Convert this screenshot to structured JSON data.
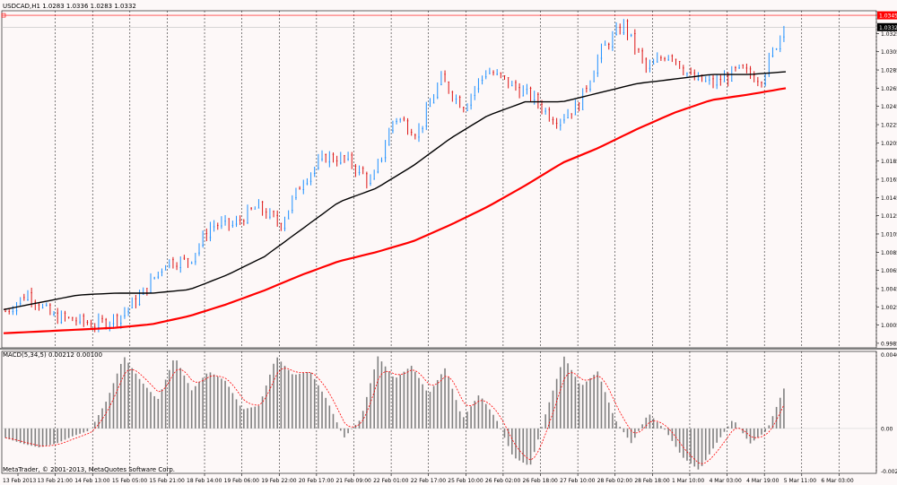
{
  "chart_header": {
    "symbol": "USDCAD,H1",
    "ohlc": "1.0283 1.0336 1.0283 1.0332"
  },
  "indicator_header": {
    "name": "MACD(5,34,5)",
    "values": "0.00212 0.00100"
  },
  "copyright": "MetaTrader, © 2001-2013, MetaQuotes Software Corp.",
  "price_axis": {
    "ticks": [
      "1.0325",
      "1.0305",
      "1.0285",
      "1.0265",
      "1.0245",
      "1.0225",
      "1.0205",
      "1.0185",
      "1.0165",
      "1.0145",
      "1.0125",
      "1.0105",
      "1.0085",
      "1.0065",
      "1.0045",
      "1.0025",
      "1.0005",
      "0.9985"
    ],
    "current_price": "1.0332",
    "line_price": "1.0345",
    "line_color": "#ff0000",
    "current_color": "#000000"
  },
  "macd_axis": {
    "ticks": [
      "0.00405",
      "0.00",
      "-0.00236"
    ]
  },
  "time_axis": {
    "labels": [
      "13 Feb 2013",
      "13 Feb 21:00",
      "14 Feb 13:00",
      "15 Feb 05:00",
      "15 Feb 21:00",
      "18 Feb 14:00",
      "19 Feb 06:00",
      "19 Feb 22:00",
      "20 Feb 17:00",
      "21 Feb 09:00",
      "22 Feb 01:00",
      "22 Feb 17:00",
      "25 Feb 10:00",
      "26 Feb 02:00",
      "26 Feb 18:00",
      "27 Feb 10:00",
      "28 Feb 02:00",
      "28 Feb 18:00",
      "1 Mar 10:00",
      "4 Mar 03:00",
      "4 Mar 19:00",
      "5 Mar 11:00",
      "6 Mar 03:00"
    ]
  },
  "colors": {
    "bull": "#1e90ff",
    "bear": "#dc1414",
    "ma_slow": "#ff0000",
    "ma_fast": "#000000",
    "hist": "#808080",
    "signal": "#ff0000",
    "background": "#fdf8f8"
  },
  "chart_data": [
    {
      "type": "candlestick",
      "title": "USDCAD,H1",
      "ylim": [
        0.998,
        1.035
      ],
      "price_waypoints": [
        1.002,
        1.004,
        1.0015,
        1.001,
        1.0005,
        1.0015,
        1.004,
        1.0075,
        1.0075,
        1.0115,
        1.0115,
        1.0135,
        1.0115,
        1.0165,
        1.019,
        1.0185,
        1.016,
        1.0235,
        1.0215,
        1.0275,
        1.0245,
        1.0285,
        1.027,
        1.0255,
        1.023,
        1.0245,
        1.0305,
        1.0335,
        1.0285,
        1.0305,
        1.0275,
        1.027,
        1.0285,
        1.0275,
        1.0332
      ],
      "moving_averages": [
        {
          "name": "MA slow",
          "color": "#ff0000",
          "values": [
            0.9996,
            0.9998,
            1.0,
            1.0002,
            1.0006,
            1.0015,
            1.0028,
            1.0043,
            1.006,
            1.0075,
            1.0085,
            1.0097,
            1.0115,
            1.0135,
            1.0158,
            1.0183,
            1.02,
            1.022,
            1.0238,
            1.0252,
            1.0258,
            1.0265
          ]
        },
        {
          "name": "MA fast",
          "color": "#000000",
          "values": [
            1.0022,
            1.003,
            1.0038,
            1.004,
            1.004,
            1.0044,
            1.006,
            1.008,
            1.011,
            1.014,
            1.0155,
            1.018,
            1.021,
            1.0235,
            1.025,
            1.025,
            1.026,
            1.027,
            1.0275,
            1.028,
            1.028,
            1.0283
          ]
        }
      ]
    },
    {
      "type": "bar",
      "title": "MACD(5,34,5)",
      "ylim": [
        -0.00236,
        0.00405
      ],
      "macd_waypoints": [
        -0.0005,
        -0.0008,
        -0.001,
        -0.0008,
        -0.0004,
        -0.0001,
        0.0015,
        0.0038,
        0.0025,
        0.0015,
        0.0038,
        0.002,
        0.003,
        0.0025,
        0.001,
        0.0012,
        0.0038,
        0.0028,
        0.003,
        0.0015,
        -0.0005,
        0.0005,
        0.0038,
        0.0026,
        0.0033,
        0.0018,
        0.0032,
        0.0005,
        0.0018,
        0.0005,
        -0.0015,
        -0.002,
        0.001,
        0.0038,
        0.0022,
        0.003,
        0.0005,
        -0.0008,
        0.0008,
        -0.0001,
        -0.0015,
        -0.0022,
        -0.0008,
        0.0005,
        -0.0008,
        -0.0001,
        0.0021
      ],
      "signal_color": "#ff0000"
    }
  ]
}
